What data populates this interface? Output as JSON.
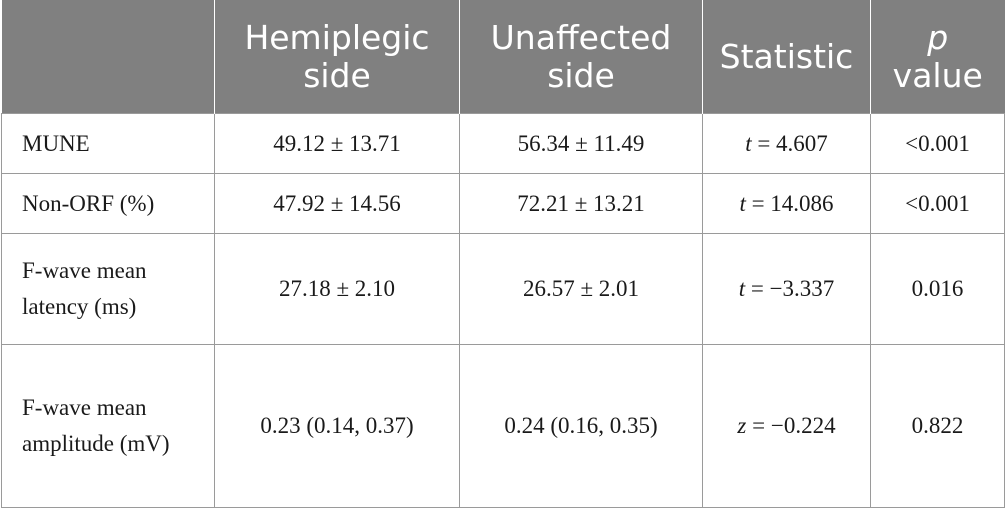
{
  "table": {
    "headers": [
      {
        "text": ""
      },
      {
        "text": "Hemiplegic side"
      },
      {
        "text": "Unaffected side"
      },
      {
        "text": "Statistic"
      },
      {
        "italic": "p",
        "text": "value"
      }
    ],
    "rows": [
      {
        "label": "MUNE",
        "hemiplegic": "49.12 ± 13.71",
        "unaffected": "56.34 ± 11.49",
        "stat_var": "t",
        "stat_value": " = 4.607",
        "p": "<0.001"
      },
      {
        "label": "Non-ORF (%)",
        "hemiplegic": "47.92 ± 14.56",
        "unaffected": "72.21 ± 13.21",
        "stat_var": "t",
        "stat_value": " = 14.086",
        "p": "<0.001"
      },
      {
        "label": "F-wave mean latency (ms)",
        "hemiplegic": "27.18 ± 2.10",
        "unaffected": "26.57 ± 2.01",
        "stat_var": "t",
        "stat_value": " = −3.337",
        "p": "0.016"
      },
      {
        "label": "F-wave mean amplitude (mV)",
        "hemiplegic": "0.23 (0.14, 0.37)",
        "unaffected": "0.24 (0.16, 0.35)",
        "stat_var": "z",
        "stat_value": " = −0.224",
        "p": "0.822"
      }
    ]
  }
}
